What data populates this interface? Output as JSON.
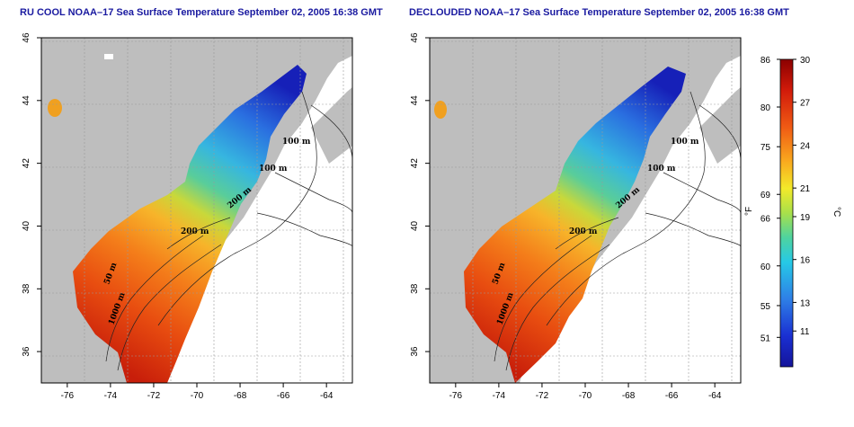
{
  "maps": [
    {
      "title": "RU COOL NOAA–17 Sea Surface Temperature September 02, 2005 16:38 GMT",
      "contour_labels": [
        "100 m",
        "100 m",
        "200 m",
        "200 m",
        "50 m",
        "1000 m"
      ]
    },
    {
      "title": "DECLOUDED NOAA–17 Sea Surface Temperature September 02, 2005 16:38 GMT",
      "contour_labels": [
        "100 m",
        "100 m",
        "200 m",
        "200 m",
        "50 m",
        "1000 m"
      ]
    }
  ],
  "axes": {
    "x_ticks": [
      "-76",
      "-74",
      "-72",
      "-70",
      "-68",
      "-66",
      "-64"
    ],
    "y_ticks": [
      "46",
      "44",
      "42",
      "40",
      "38",
      "36"
    ],
    "x_range": [
      -77.2,
      -62.8
    ],
    "y_range": [
      35.0,
      46.0
    ],
    "grid": true
  },
  "colorbar": {
    "fahrenheit_label": "°F",
    "celsius_label": "°C",
    "fahrenheit_ticks": [
      "86",
      "80",
      "75",
      "69",
      "66",
      "60",
      "55",
      "51"
    ],
    "celsius_ticks": [
      "30",
      "27",
      "24",
      "21",
      "19",
      "16",
      "13",
      "11"
    ],
    "celsius_values": [
      30,
      27,
      24,
      21,
      19,
      16,
      13,
      11
    ],
    "range_c": [
      8.5,
      30
    ]
  },
  "colors": {
    "land": "#bebebe",
    "title": "#1a1aa0"
  }
}
